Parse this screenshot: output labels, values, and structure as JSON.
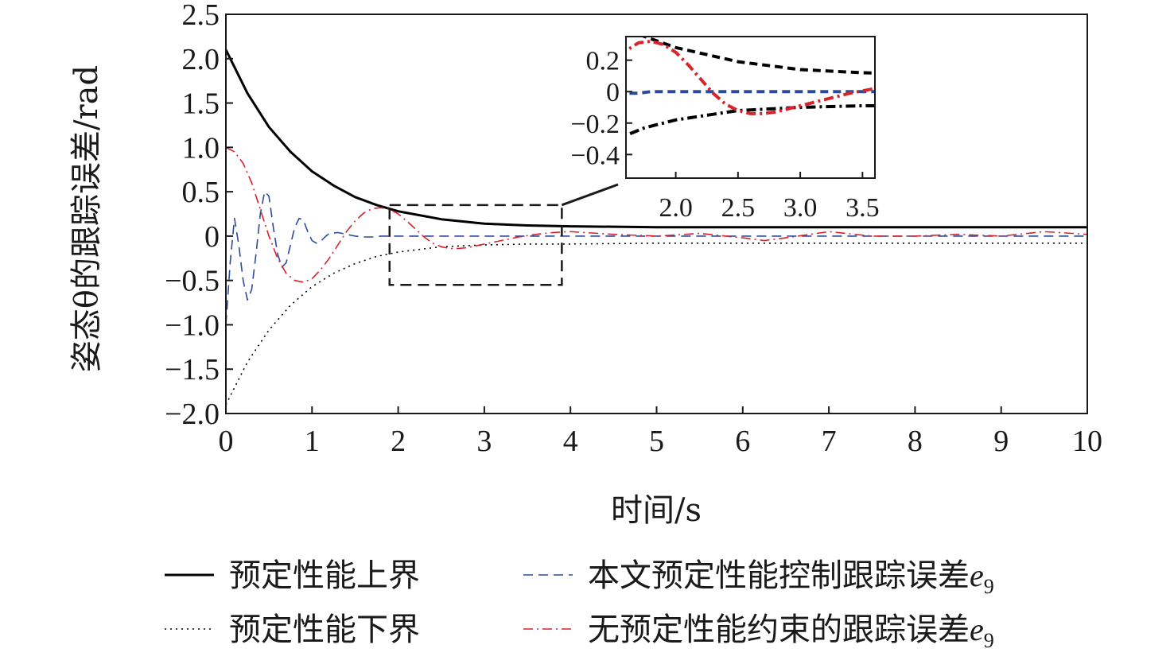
{
  "chart_data": {
    "type": "line",
    "xlabel": "时间/s",
    "ylabel": "姿态θ的跟踪误差/rad",
    "xlim": [
      0,
      10
    ],
    "ylim": [
      -2.0,
      2.5
    ],
    "x_ticks": [
      0,
      1,
      2,
      3,
      4,
      5,
      6,
      7,
      8,
      9,
      10
    ],
    "x_tick_labels": [
      "0",
      "1",
      "2",
      "3",
      "4",
      "5",
      "6",
      "7",
      "8",
      "9",
      "10"
    ],
    "y_ticks": [
      2.5,
      2.0,
      1.5,
      1.0,
      0.5,
      0,
      -0.5,
      -1.0,
      -1.5,
      -2.0
    ],
    "y_tick_labels": [
      "2.5",
      "2.0",
      "1.5",
      "1.0",
      "0.5",
      "0",
      "−0.5",
      "−1.0",
      "−1.5",
      "−2.0"
    ],
    "grid": false,
    "legend_position": "bottom",
    "zoom_box": {
      "x": [
        1.9,
        3.9
      ],
      "y": [
        -0.55,
        0.35
      ]
    },
    "series": [
      {
        "name": "预定性能上界",
        "style": "solid",
        "color": "#000000",
        "x": [
          0,
          0.25,
          0.5,
          0.75,
          1.0,
          1.25,
          1.5,
          1.75,
          2.0,
          2.5,
          3.0,
          3.5,
          4.0,
          5.0,
          6.0,
          7.0,
          8.0,
          9.0,
          10.0
        ],
        "y": [
          2.1,
          1.61,
          1.23,
          0.95,
          0.73,
          0.57,
          0.44,
          0.35,
          0.28,
          0.19,
          0.14,
          0.12,
          0.11,
          0.1,
          0.1,
          0.1,
          0.1,
          0.1,
          0.1
        ]
      },
      {
        "name": "预定性能下界",
        "style": "dotted",
        "color": "#000000",
        "x": [
          0,
          0.25,
          0.5,
          0.75,
          1.0,
          1.25,
          1.5,
          1.75,
          2.0,
          2.5,
          3.0,
          3.5,
          4.0,
          5.0,
          6.0,
          7.0,
          8.0,
          9.0,
          10.0
        ],
        "y": [
          -1.9,
          -1.42,
          -1.06,
          -0.78,
          -0.57,
          -0.42,
          -0.31,
          -0.23,
          -0.18,
          -0.12,
          -0.1,
          -0.09,
          -0.09,
          -0.08,
          -0.08,
          -0.08,
          -0.08,
          -0.08,
          -0.08
        ]
      },
      {
        "name": "本文预定性能控制跟踪误差e9",
        "style": "dashed",
        "color": "#2b4a9a",
        "x": [
          0,
          0.05,
          0.1,
          0.15,
          0.2,
          0.25,
          0.3,
          0.35,
          0.4,
          0.45,
          0.5,
          0.55,
          0.6,
          0.65,
          0.7,
          0.75,
          0.8,
          0.85,
          0.9,
          0.95,
          1.0,
          1.05,
          1.1,
          1.15,
          1.2,
          1.3,
          1.4,
          1.5,
          1.6,
          1.7,
          1.8,
          2.0,
          2.5,
          3.0,
          4.0,
          5.0,
          6.0,
          7.0,
          8.0,
          9.0,
          10.0
        ],
        "y": [
          -1.0,
          -0.3,
          0.2,
          -0.1,
          -0.5,
          -0.72,
          -0.6,
          -0.2,
          0.25,
          0.5,
          0.45,
          0.1,
          -0.2,
          -0.35,
          -0.3,
          -0.1,
          0.1,
          0.2,
          0.18,
          0.05,
          -0.05,
          -0.08,
          -0.06,
          -0.01,
          0.03,
          0.04,
          0.02,
          0.0,
          -0.01,
          -0.01,
          0.0,
          0.0,
          0.0,
          0.0,
          0.0,
          0.0,
          0.0,
          0.0,
          0.0,
          0.0,
          0.0
        ]
      },
      {
        "name": "无预定性能约束的跟踪误差e9",
        "style": "dashdot",
        "color": "#d8232a",
        "x": [
          0,
          0.1,
          0.2,
          0.3,
          0.4,
          0.5,
          0.6,
          0.7,
          0.8,
          0.9,
          1.0,
          1.1,
          1.2,
          1.3,
          1.4,
          1.5,
          1.6,
          1.7,
          1.8,
          1.9,
          2.0,
          2.1,
          2.2,
          2.3,
          2.4,
          2.5,
          2.6,
          2.7,
          2.8,
          2.9,
          3.0,
          3.2,
          3.4,
          3.6,
          3.8,
          4.0,
          4.5,
          5.0,
          5.5,
          6.0,
          6.25,
          6.5,
          7.0,
          7.5,
          8.0,
          8.5,
          9.0,
          9.5,
          10.0
        ],
        "y": [
          1.0,
          0.95,
          0.82,
          0.6,
          0.3,
          0.0,
          -0.25,
          -0.42,
          -0.5,
          -0.52,
          -0.48,
          -0.38,
          -0.25,
          -0.1,
          0.05,
          0.17,
          0.26,
          0.31,
          0.32,
          0.3,
          0.25,
          0.17,
          0.08,
          -0.01,
          -0.08,
          -0.12,
          -0.14,
          -0.14,
          -0.13,
          -0.11,
          -0.09,
          -0.05,
          -0.01,
          0.02,
          0.04,
          0.05,
          0.02,
          0.0,
          0.03,
          -0.02,
          -0.05,
          -0.02,
          0.05,
          0.0,
          0.0,
          0.02,
          0.0,
          0.05,
          0.02
        ]
      }
    ],
    "inset": {
      "xlim": [
        1.6,
        3.6
      ],
      "ylim": [
        -0.55,
        0.35
      ],
      "x_ticks": [
        2.0,
        2.5,
        3.0,
        3.5
      ],
      "x_tick_labels": [
        "2.0",
        "2.5",
        "3.0",
        "3.5"
      ],
      "y_ticks": [
        0.2,
        0,
        -0.2,
        -0.4
      ],
      "y_tick_labels": [
        "0.2",
        "0",
        "−0.2",
        "−0.4"
      ]
    }
  },
  "legend": {
    "items": [
      {
        "label": "预定性能上界",
        "series": 0
      },
      {
        "label": "本文预定性能控制跟踪误差",
        "sub": "e",
        "subscript": "9",
        "series": 2
      },
      {
        "label": "预定性能下界",
        "series": 1
      },
      {
        "label": "无预定性能约束的跟踪误差",
        "sub": "e",
        "subscript": "9",
        "series": 3
      }
    ]
  }
}
